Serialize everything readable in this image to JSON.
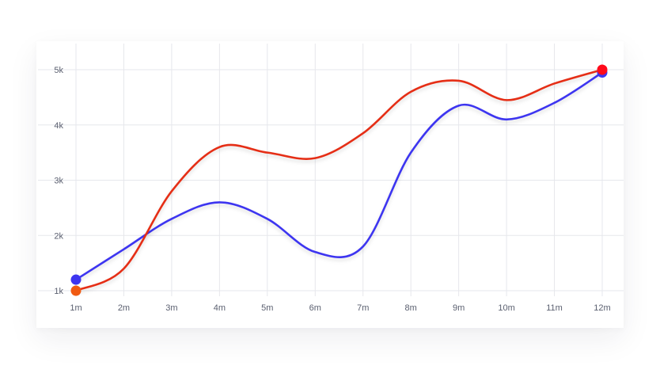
{
  "chart_data": {
    "type": "line",
    "title": "",
    "xlabel": "",
    "ylabel": "",
    "categories": [
      "1m",
      "2m",
      "3m",
      "4m",
      "5m",
      "6m",
      "7m",
      "8m",
      "9m",
      "10m",
      "11m",
      "12m"
    ],
    "y_ticks": [
      {
        "value": 1,
        "label": "1k"
      },
      {
        "value": 2,
        "label": "2k"
      },
      {
        "value": 3,
        "label": "3k"
      },
      {
        "value": 4,
        "label": "4k"
      },
      {
        "value": 5,
        "label": "5k"
      }
    ],
    "ylim": [
      1,
      5
    ],
    "grid": true,
    "legend": "none",
    "series": [
      {
        "color": "#3d35f0",
        "values": [
          1.2,
          1.75,
          2.3,
          2.6,
          2.3,
          1.7,
          1.8,
          3.5,
          4.35,
          4.1,
          4.4,
          4.95
        ]
      },
      {
        "color": "#e52e14",
        "start_color": "#f05a12",
        "end_color": "#ff0a1a",
        "values": [
          1.0,
          1.4,
          2.8,
          3.6,
          3.5,
          3.4,
          3.85,
          4.6,
          4.8,
          4.45,
          4.75,
          5.0
        ]
      }
    ]
  }
}
